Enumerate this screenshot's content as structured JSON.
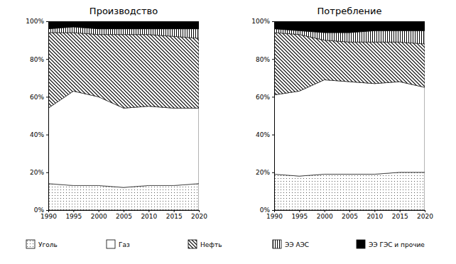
{
  "chart_data": [
    {
      "type": "area",
      "title": "Производство",
      "stacked": true,
      "legend": "bottom",
      "x": [
        1990,
        1995,
        2000,
        2005,
        2010,
        2015,
        2020
      ],
      "xlim": [
        1990,
        2020
      ],
      "xticks": [
        1990,
        1995,
        2000,
        2005,
        2010,
        2015,
        2020
      ],
      "ylim": [
        0,
        100
      ],
      "yticks": [
        {
          "value": 0,
          "label": "0%"
        },
        {
          "value": 20,
          "label": "20%"
        },
        {
          "value": 40,
          "label": "40%"
        },
        {
          "value": 60,
          "label": "60%"
        },
        {
          "value": 80,
          "label": "80%"
        },
        {
          "value": 100,
          "label": "100%"
        }
      ],
      "series": [
        {
          "name": "Уголь",
          "color": "#ffffff",
          "values": [
            14,
            13,
            13,
            12,
            13,
            13,
            14
          ]
        },
        {
          "name": "Газ",
          "color": "#ffffff",
          "values": [
            40,
            50,
            47,
            42,
            42,
            41,
            40
          ]
        },
        {
          "name": "Нефть",
          "color": "#ffffff",
          "values": [
            40,
            31,
            33,
            39,
            38,
            38,
            37
          ]
        },
        {
          "name": "ЭЭ АЭС",
          "color": "#ffffff",
          "values": [
            2,
            3,
            3,
            3,
            3,
            4,
            5
          ]
        },
        {
          "name": "ЭЭ ГЭС и прочие",
          "color": "#000000",
          "values": [
            4,
            3,
            4,
            4,
            4,
            4,
            4
          ]
        }
      ]
    },
    {
      "type": "area",
      "title": "Потребление",
      "stacked": true,
      "x": [
        1990,
        1995,
        2000,
        2005,
        2010,
        2015,
        2020
      ],
      "xlim": [
        1990,
        2020
      ],
      "xticks": [
        1990,
        1995,
        2000,
        2005,
        2010,
        2015,
        2020
      ],
      "ylim": [
        0,
        100
      ],
      "yticks": [
        {
          "value": 0,
          "label": "0%"
        },
        {
          "value": 20,
          "label": "20%"
        },
        {
          "value": 40,
          "label": "40%"
        },
        {
          "value": 60,
          "label": "60%"
        },
        {
          "value": 80,
          "label": "80%"
        },
        {
          "value": 100,
          "label": "100%"
        }
      ],
      "series": [
        {
          "name": "Уголь",
          "color": "#ffffff",
          "values": [
            19,
            18,
            19,
            19,
            19,
            20,
            20
          ]
        },
        {
          "name": "Газ",
          "color": "#ffffff",
          "values": [
            42,
            45,
            50,
            49,
            48,
            48,
            45
          ]
        },
        {
          "name": "Нефть",
          "color": "#ffffff",
          "values": [
            33,
            30,
            21,
            21,
            22,
            21,
            23
          ]
        },
        {
          "name": "ЭЭ АЭС",
          "color": "#ffffff",
          "values": [
            2,
            2,
            4,
            5,
            6,
            6,
            7
          ]
        },
        {
          "name": "ЭЭ ГЭС и прочие",
          "color": "#000000",
          "values": [
            4,
            5,
            6,
            6,
            5,
            5,
            5
          ]
        }
      ]
    }
  ]
}
